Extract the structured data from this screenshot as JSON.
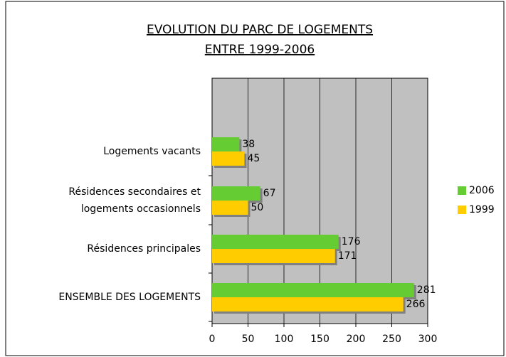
{
  "chart_data": {
    "type": "hbar",
    "title": [
      "EVOLUTION DU PARC DE LOGEMENTS",
      "ENTRE 1999-2006"
    ],
    "categories": [
      [
        "Logements vacants"
      ],
      [
        "Résidences secondaires et",
        "logements occasionnels"
      ],
      [
        "Résidences principales"
      ],
      [
        "ENSEMBLE DES LOGEMENTS"
      ]
    ],
    "series": [
      {
        "name": "2006",
        "color": "#66cc33",
        "values": [
          38,
          67,
          176,
          281
        ]
      },
      {
        "name": "1999",
        "color": "#ffcc00",
        "values": [
          45,
          50,
          171,
          266
        ]
      }
    ],
    "xlim": [
      0,
      300
    ],
    "xticks": [
      0,
      50,
      100,
      150,
      200,
      250,
      300
    ],
    "grid": true,
    "legend": "right"
  }
}
